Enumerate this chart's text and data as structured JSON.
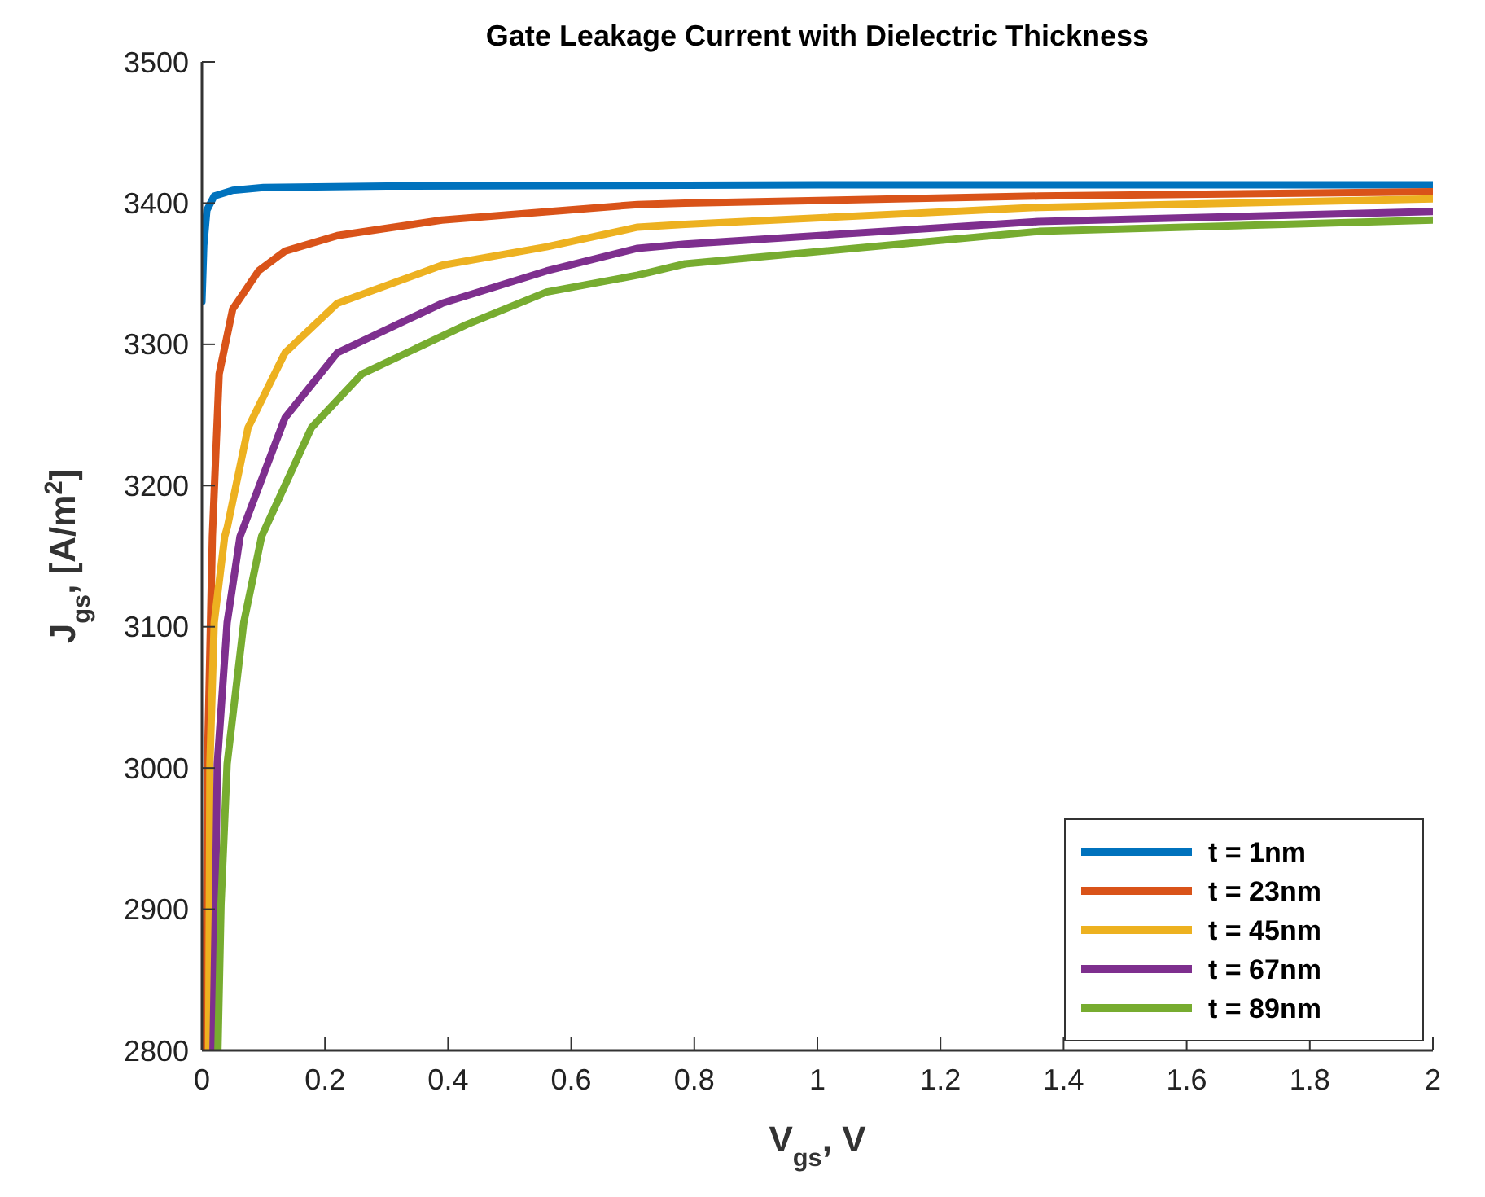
{
  "chart_data": {
    "type": "line",
    "title": "Gate Leakage Current with Dielectric Thickness",
    "xlabel": "V$_{gs}$, V",
    "ylabel": "J$_{gs}$, [A/m$^{2}$]",
    "xlim": [
      0,
      2
    ],
    "xticks": [
      0,
      0.2,
      0.4,
      0.6,
      0.8,
      1,
      1.2,
      1.4,
      1.6,
      1.8,
      2
    ],
    "ylim": [
      2800,
      3500
    ],
    "yticks": [
      2800,
      2900,
      3000,
      3100,
      3200,
      3300,
      3400,
      3500
    ],
    "grid": false,
    "legend": "bottom right",
    "line_style": "solid",
    "marker": "none",
    "series": [
      {
        "name": "t = 1nm",
        "color": "#0072bd",
        "x": [
          0,
          0.003,
          0.008,
          0.02,
          0.05,
          0.1,
          0.3,
          1,
          2
        ],
        "values": [
          3330,
          3370,
          3395,
          3405,
          3409,
          3411,
          3412,
          3413,
          3413
        ]
      },
      {
        "name": "t = 23nm",
        "color": "#d95319",
        "x": [
          0.006,
          0.009,
          0.017,
          0.028,
          0.05,
          0.092,
          0.135,
          0.22,
          0.39,
          0.708,
          0.785,
          1.36,
          2
        ],
        "values": [
          2800,
          3003,
          3164,
          3279,
          3325,
          3352,
          3366,
          3377,
          3388,
          3399,
          3400,
          3405,
          3408
        ]
      },
      {
        "name": "t = 45nm",
        "color": "#edb120",
        "x": [
          0.011,
          0.013,
          0.02,
          0.037,
          0.041,
          0.075,
          0.135,
          0.22,
          0.39,
          0.56,
          0.708,
          0.785,
          1.36,
          2
        ],
        "values": [
          2800,
          3003,
          3103,
          3164,
          3170,
          3241,
          3294,
          3329,
          3356,
          3369,
          3383,
          3385,
          3397,
          3403
        ]
      },
      {
        "name": "t = 67nm",
        "color": "#7e2f8e",
        "x": [
          0.018,
          0.022,
          0.025,
          0.041,
          0.062,
          0.135,
          0.22,
          0.39,
          0.56,
          0.708,
          0.785,
          1.36,
          2
        ],
        "values": [
          2800,
          2903,
          3003,
          3103,
          3164,
          3248,
          3294,
          3329,
          3352,
          3368,
          3371,
          3387,
          3394
        ]
      },
      {
        "name": "t = 89nm",
        "color": "#77ac30",
        "x": [
          0.026,
          0.031,
          0.041,
          0.068,
          0.097,
          0.178,
          0.26,
          0.43,
          0.56,
          0.708,
          0.785,
          1.36,
          2
        ],
        "values": [
          2800,
          2903,
          3003,
          3103,
          3164,
          3241,
          3279,
          3314,
          3337,
          3349,
          3357,
          3380,
          3388
        ]
      }
    ]
  }
}
